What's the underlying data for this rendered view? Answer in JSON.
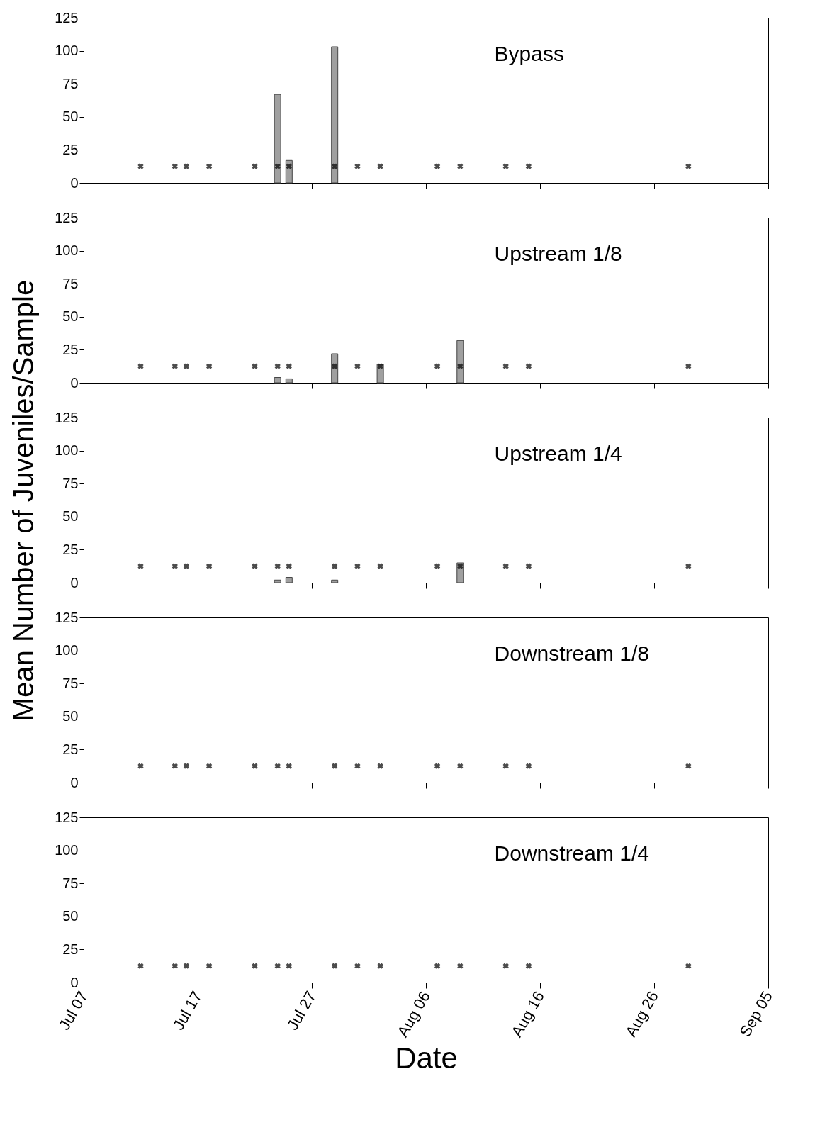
{
  "chart_data": [
    {
      "type": "bar",
      "title": "Bypass",
      "tick_labels": "y",
      "xlim": [
        "--07-07",
        "--09-05"
      ],
      "ylim": [
        0,
        125
      ],
      "yticks": [
        0,
        25,
        50,
        75,
        100,
        125
      ],
      "xticks": [
        {
          "value": "--07-07",
          "label": "Jul 07"
        },
        {
          "value": "--07-17",
          "label": "Jul 17"
        },
        {
          "value": "--07-27",
          "label": "Jul 27"
        },
        {
          "value": "--08-06",
          "label": "Aug 06"
        },
        {
          "value": "--08-16",
          "label": "Aug 16"
        },
        {
          "value": "--08-26",
          "label": "Aug 26"
        },
        {
          "value": "--09-05",
          "label": "Sep 05"
        }
      ],
      "series": [
        {
          "type": "bar",
          "color": "#a0a0a0",
          "x": [
            "--07-24",
            "--07-25",
            "--07-29"
          ],
          "values": [
            67,
            17,
            103
          ]
        },
        {
          "type": "scatter",
          "marker": "cross",
          "color": "#000000",
          "x": [
            "--07-12",
            "--07-15",
            "--07-16",
            "--07-18",
            "--07-22",
            "--07-24",
            "--07-25",
            "--07-29",
            "--07-31",
            "--08-02",
            "--08-07",
            "--08-09",
            "--08-13",
            "--08-15",
            "--08-29"
          ],
          "values": [
            12.5,
            12.5,
            12.5,
            12.5,
            12.5,
            12.5,
            12.5,
            12.5,
            12.5,
            12.5,
            12.5,
            12.5,
            12.5,
            12.5,
            12.5
          ]
        }
      ]
    },
    {
      "type": "bar",
      "title": "Upstream 1/8",
      "tick_labels": "y",
      "xlim": [
        "--07-07",
        "--09-05"
      ],
      "ylim": [
        0,
        125
      ],
      "yticks": [
        0,
        25,
        50,
        75,
        100,
        125
      ],
      "xticks": [
        {
          "value": "--07-07",
          "label": "Jul 07"
        },
        {
          "value": "--07-17",
          "label": "Jul 17"
        },
        {
          "value": "--07-27",
          "label": "Jul 27"
        },
        {
          "value": "--08-06",
          "label": "Aug 06"
        },
        {
          "value": "--08-16",
          "label": "Aug 16"
        },
        {
          "value": "--08-26",
          "label": "Aug 26"
        },
        {
          "value": "--09-05",
          "label": "Sep 05"
        }
      ],
      "series": [
        {
          "type": "bar",
          "color": "#a0a0a0",
          "x": [
            "--07-24",
            "--07-25",
            "--07-29",
            "--08-02",
            "--08-09"
          ],
          "values": [
            4,
            3,
            22,
            14,
            32
          ]
        },
        {
          "type": "scatter",
          "marker": "cross",
          "color": "#000000",
          "x": [
            "--07-12",
            "--07-15",
            "--07-16",
            "--07-18",
            "--07-22",
            "--07-24",
            "--07-25",
            "--07-29",
            "--07-31",
            "--08-02",
            "--08-07",
            "--08-09",
            "--08-13",
            "--08-15",
            "--08-29"
          ],
          "values": [
            12.5,
            12.5,
            12.5,
            12.5,
            12.5,
            12.5,
            12.5,
            12.5,
            12.5,
            12.5,
            12.5,
            12.5,
            12.5,
            12.5,
            12.5
          ]
        }
      ]
    },
    {
      "type": "bar",
      "title": "Upstream 1/4",
      "ylabel": "Mean Number of Juveniles/Sample",
      "tick_labels": "y",
      "xlim": [
        "--07-07",
        "--09-05"
      ],
      "ylim": [
        0,
        125
      ],
      "yticks": [
        0,
        25,
        50,
        75,
        100,
        125
      ],
      "xticks": [
        {
          "value": "--07-07",
          "label": "Jul 07"
        },
        {
          "value": "--07-17",
          "label": "Jul 17"
        },
        {
          "value": "--07-27",
          "label": "Jul 27"
        },
        {
          "value": "--08-06",
          "label": "Aug 06"
        },
        {
          "value": "--08-16",
          "label": "Aug 16"
        },
        {
          "value": "--08-26",
          "label": "Aug 26"
        },
        {
          "value": "--09-05",
          "label": "Sep 05"
        }
      ],
      "series": [
        {
          "type": "bar",
          "color": "#a0a0a0",
          "x": [
            "--07-24",
            "--07-25",
            "--07-29",
            "--08-09"
          ],
          "values": [
            2,
            4,
            2,
            15
          ]
        },
        {
          "type": "scatter",
          "marker": "cross",
          "color": "#000000",
          "x": [
            "--07-12",
            "--07-15",
            "--07-16",
            "--07-18",
            "--07-22",
            "--07-24",
            "--07-25",
            "--07-29",
            "--07-31",
            "--08-02",
            "--08-07",
            "--08-09",
            "--08-13",
            "--08-15",
            "--08-29"
          ],
          "values": [
            12.5,
            12.5,
            12.5,
            12.5,
            12.5,
            12.5,
            12.5,
            12.5,
            12.5,
            12.5,
            12.5,
            12.5,
            12.5,
            12.5,
            12.5
          ]
        }
      ]
    },
    {
      "type": "bar",
      "title": "Downstream 1/8",
      "tick_labels": "y",
      "xlim": [
        "--07-07",
        "--09-05"
      ],
      "ylim": [
        0,
        125
      ],
      "yticks": [
        0,
        25,
        50,
        75,
        100,
        125
      ],
      "xticks": [
        {
          "value": "--07-07",
          "label": "Jul 07"
        },
        {
          "value": "--07-17",
          "label": "Jul 17"
        },
        {
          "value": "--07-27",
          "label": "Jul 27"
        },
        {
          "value": "--08-06",
          "label": "Aug 06"
        },
        {
          "value": "--08-16",
          "label": "Aug 16"
        },
        {
          "value": "--08-26",
          "label": "Aug 26"
        },
        {
          "value": "--09-05",
          "label": "Sep 05"
        }
      ],
      "series": [
        {
          "type": "scatter",
          "marker": "cross",
          "color": "#000000",
          "x": [
            "--07-12",
            "--07-15",
            "--07-16",
            "--07-18",
            "--07-22",
            "--07-24",
            "--07-25",
            "--07-29",
            "--07-31",
            "--08-02",
            "--08-07",
            "--08-09",
            "--08-13",
            "--08-15",
            "--08-29"
          ],
          "values": [
            12.5,
            12.5,
            12.5,
            12.5,
            12.5,
            12.5,
            12.5,
            12.5,
            12.5,
            12.5,
            12.5,
            12.5,
            12.5,
            12.5,
            12.5
          ]
        }
      ]
    },
    {
      "type": "bar",
      "title": "Downstream 1/4",
      "xlabel": "Date",
      "xlim": [
        "--07-07",
        "--09-05"
      ],
      "ylim": [
        0,
        125
      ],
      "yticks": [
        0,
        25,
        50,
        75,
        100,
        125
      ],
      "xticks": [
        {
          "value": "--07-07",
          "label": "Jul 07"
        },
        {
          "value": "--07-17",
          "label": "Jul 17"
        },
        {
          "value": "--07-27",
          "label": "Jul 27"
        },
        {
          "value": "--08-06",
          "label": "Aug 06"
        },
        {
          "value": "--08-16",
          "label": "Aug 16"
        },
        {
          "value": "--08-26",
          "label": "Aug 26"
        },
        {
          "value": "--09-05",
          "label": "Sep 05"
        }
      ],
      "series": [
        {
          "type": "scatter",
          "marker": "cross",
          "color": "#000000",
          "x": [
            "--07-12",
            "--07-15",
            "--07-16",
            "--07-18",
            "--07-22",
            "--07-24",
            "--07-25",
            "--07-29",
            "--07-31",
            "--08-02",
            "--08-07",
            "--08-09",
            "--08-13",
            "--08-15",
            "--08-29"
          ],
          "values": [
            12.5,
            12.5,
            12.5,
            12.5,
            12.5,
            12.5,
            12.5,
            12.5,
            12.5,
            12.5,
            12.5,
            12.5,
            12.5,
            12.5,
            12.5
          ]
        }
      ]
    }
  ]
}
